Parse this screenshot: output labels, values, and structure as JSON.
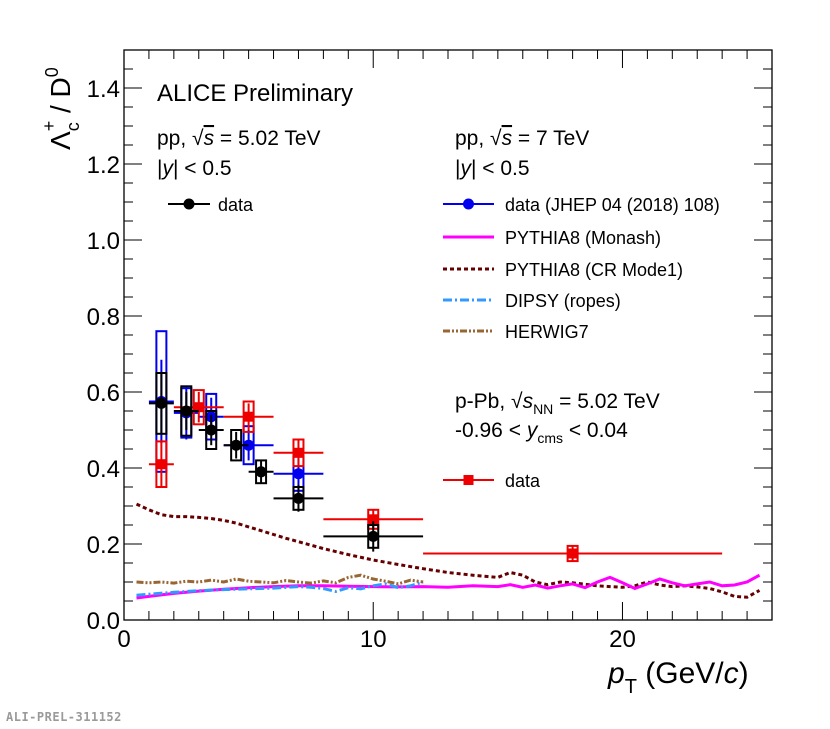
{
  "chart_data": {
    "type": "scatter",
    "title": "ALICE Preliminary",
    "xlabel": {
      "main": "p",
      "sub": "T",
      "unit_prefix": " (GeV/",
      "unit_var": "c",
      "unit_suffix": ")"
    },
    "ylabel": {
      "lambda": "Λ",
      "sub": "c",
      "sup": "+",
      "rest": " / D",
      "rest_sup": "0"
    },
    "xlim": [
      0,
      26
    ],
    "ylim": [
      0,
      1.5
    ],
    "x_ticks": [
      "0",
      "10",
      "20"
    ],
    "y_ticks": [
      "0.0",
      "0.2",
      "0.4",
      "0.6",
      "0.8",
      "1.0",
      "1.2",
      "1.4"
    ],
    "annotations": {
      "pp502": {
        "line1_a": "pp, ",
        "line1_sqrt": "√",
        "line1_s": "s",
        "line1_b": " = 5.02 TeV",
        "line2_a": "|",
        "line2_y": "y",
        "line2_b": "| < 0.5"
      },
      "pp7": {
        "line1_a": "pp, ",
        "line1_sqrt": "√",
        "line1_s": "s",
        "line1_b": " = 7 TeV",
        "line2_a": "|",
        "line2_y": "y",
        "line2_b": "| < 0.5"
      },
      "ppb": {
        "line1_a": "p-Pb, ",
        "line1_sqrt": "√",
        "line1_s": "s",
        "line1_sub": "NN",
        "line1_b": " = 5.02 TeV",
        "line2_a": "-0.96 < ",
        "line2_y": "y",
        "line2_sub": "cms",
        "line2_b": " < 0.04"
      }
    },
    "legend": [
      {
        "label": "data",
        "color": "#000000",
        "style": "marker-circle"
      },
      {
        "label": "data (JHEP 04 (2018) 108)",
        "color": "#0000ee",
        "style": "marker-circle"
      },
      {
        "label": "PYTHIA8 (Monash)",
        "color": "#ff00ff",
        "style": "solid"
      },
      {
        "label": "PYTHIA8 (CR Mode1)",
        "color": "#660000",
        "style": "dotted"
      },
      {
        "label": "DIPSY (ropes)",
        "color": "#3399ff",
        "style": "dashdot"
      },
      {
        "label": "HERWIG7",
        "color": "#996633",
        "style": "dashdotdot"
      },
      {
        "label": "data",
        "color": "#ee0000",
        "style": "marker-square"
      }
    ],
    "series": [
      {
        "name": "pp 5.02 TeV data",
        "color": "#000000",
        "marker": "circle",
        "points": [
          {
            "x": 1.5,
            "xerr": 0.5,
            "y": 0.57,
            "stat": 0.08,
            "sys": 0.08
          },
          {
            "x": 2.5,
            "xerr": 0.5,
            "y": 0.55,
            "stat": 0.05,
            "sys": 0.065
          },
          {
            "x": 3.5,
            "xerr": 0.5,
            "y": 0.5,
            "stat": 0.04,
            "sys": 0.05
          },
          {
            "x": 4.5,
            "xerr": 0.5,
            "y": 0.46,
            "stat": 0.035,
            "sys": 0.04
          },
          {
            "x": 5.5,
            "xerr": 0.5,
            "y": 0.39,
            "stat": 0.03,
            "sys": 0.03
          },
          {
            "x": 7.0,
            "xerr": 1.0,
            "y": 0.32,
            "stat": 0.035,
            "sys": 0.03
          },
          {
            "x": 10.0,
            "xerr": 2.0,
            "y": 0.22,
            "stat": 0.04,
            "sys": 0.03
          }
        ]
      },
      {
        "name": "pp 7 TeV data (JHEP 04 (2018) 108)",
        "color": "#0000ee",
        "marker": "circle",
        "points": [
          {
            "x": 1.5,
            "xerr": 0.5,
            "y": 0.575,
            "stat": 0.11,
            "sys": 0.185
          },
          {
            "x": 2.5,
            "xerr": 0.5,
            "y": 0.545,
            "stat": 0.07,
            "sys": 0.065
          },
          {
            "x": 3.5,
            "xerr": 0.5,
            "y": 0.535,
            "stat": 0.05,
            "sys": 0.06
          },
          {
            "x": 5.0,
            "xerr": 1.0,
            "y": 0.46,
            "stat": 0.04,
            "sys": 0.05
          },
          {
            "x": 7.0,
            "xerr": 1.0,
            "y": 0.385,
            "stat": 0.04,
            "sys": 0.045
          }
        ]
      },
      {
        "name": "p-Pb 5.02 TeV data",
        "color": "#ee0000",
        "marker": "square",
        "points": [
          {
            "x": 1.5,
            "xerr": 0.5,
            "y": 0.41,
            "stat": 0.06,
            "sys": 0.06
          },
          {
            "x": 3.0,
            "xerr": 1.0,
            "y": 0.56,
            "stat": 0.04,
            "sys": 0.045
          },
          {
            "x": 5.0,
            "xerr": 1.0,
            "y": 0.535,
            "stat": 0.035,
            "sys": 0.04
          },
          {
            "x": 7.0,
            "xerr": 1.0,
            "y": 0.44,
            "stat": 0.035,
            "sys": 0.035
          },
          {
            "x": 10.0,
            "xerr": 2.0,
            "y": 0.265,
            "stat": 0.025,
            "sys": 0.025
          },
          {
            "x": 18.0,
            "xerr": 6.0,
            "y": 0.175,
            "stat": 0.02,
            "sys": 0.02
          }
        ]
      }
    ],
    "curves": [
      {
        "name": "PYTHIA8 (CR Mode1)",
        "color": "#660000",
        "style": "dotted",
        "x": [
          0.5,
          1,
          1.5,
          2,
          2.5,
          3,
          3.5,
          4,
          4.5,
          5,
          5.5,
          6,
          6.5,
          7,
          8,
          9,
          10,
          11,
          12,
          13,
          14,
          15,
          15.5,
          16,
          16.5,
          17,
          17.5,
          18,
          19,
          19.5,
          20,
          20.5,
          21,
          21.5,
          22,
          22.5,
          23,
          23.5,
          24,
          24.5,
          25,
          25.5
        ],
        "y": [
          0.305,
          0.29,
          0.277,
          0.272,
          0.272,
          0.27,
          0.267,
          0.262,
          0.255,
          0.245,
          0.235,
          0.225,
          0.215,
          0.206,
          0.188,
          0.172,
          0.158,
          0.146,
          0.135,
          0.125,
          0.118,
          0.112,
          0.125,
          0.118,
          0.1,
          0.093,
          0.1,
          0.098,
          0.09,
          0.088,
          0.086,
          0.09,
          0.1,
          0.092,
          0.088,
          0.09,
          0.087,
          0.083,
          0.074,
          0.062,
          0.06,
          0.078
        ]
      },
      {
        "name": "PYTHIA8 (Monash)",
        "color": "#ff00ff",
        "style": "solid",
        "x": [
          0.5,
          1,
          2,
          3,
          4,
          5,
          6,
          7,
          8,
          9,
          10,
          11,
          12,
          13,
          14,
          15,
          15.5,
          16,
          16.5,
          17,
          17.5,
          18,
          18.5,
          19,
          19.5,
          20,
          20.5,
          21,
          21.5,
          22,
          22.5,
          23,
          23.5,
          24,
          24.5,
          25,
          25.5
        ],
        "y": [
          0.058,
          0.062,
          0.07,
          0.076,
          0.081,
          0.085,
          0.088,
          0.09,
          0.09,
          0.089,
          0.088,
          0.087,
          0.088,
          0.086,
          0.09,
          0.088,
          0.093,
          0.086,
          0.092,
          0.084,
          0.09,
          0.095,
          0.085,
          0.1,
          0.112,
          0.098,
          0.083,
          0.095,
          0.108,
          0.098,
          0.09,
          0.095,
          0.1,
          0.09,
          0.092,
          0.1,
          0.118
        ]
      },
      {
        "name": "DIPSY (ropes)",
        "color": "#3399ff",
        "style": "dashdot",
        "x": [
          0.5,
          1,
          2,
          3,
          4,
          5,
          6,
          7,
          7.5,
          8,
          8.5,
          9,
          9.5,
          10,
          10.5,
          11,
          11.5,
          12
        ],
        "y": [
          0.065,
          0.068,
          0.073,
          0.077,
          0.08,
          0.082,
          0.084,
          0.088,
          0.086,
          0.083,
          0.075,
          0.085,
          0.082,
          0.09,
          0.095,
          0.085,
          0.09,
          0.1
        ]
      },
      {
        "name": "HERWIG7",
        "color": "#996633",
        "style": "dashdotdot",
        "x": [
          0.5,
          1,
          1.5,
          2,
          2.5,
          3,
          3.5,
          4,
          4.5,
          5,
          5.5,
          6,
          6.5,
          7,
          7.5,
          8,
          8.5,
          9,
          9.5,
          10,
          10.5,
          11,
          11.5,
          12
        ],
        "y": [
          0.1,
          0.098,
          0.1,
          0.097,
          0.102,
          0.1,
          0.105,
          0.1,
          0.108,
          0.102,
          0.1,
          0.098,
          0.104,
          0.1,
          0.097,
          0.103,
          0.098,
          0.112,
          0.118,
          0.108,
          0.102,
          0.095,
          0.105,
          0.1
        ]
      }
    ]
  },
  "watermark": "ALI-PREL-311152"
}
